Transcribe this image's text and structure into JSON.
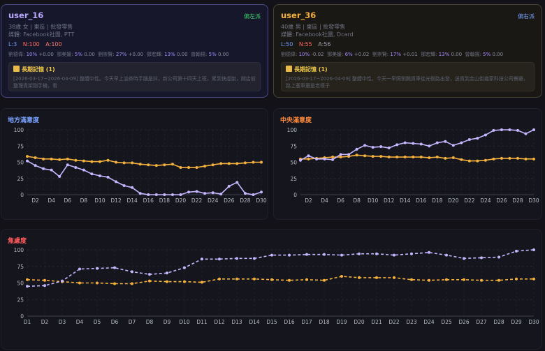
{
  "users": [
    {
      "name": "user_16",
      "lean": "偏左派",
      "profile": "38歲 女 | 東區 | 批發零售",
      "media": "媒體: Facebook社團, PTT",
      "stats": {
        "L": "L:3",
        "N": "N:100",
        "A": "A:100"
      },
      "scores": [
        {
          "label": "劉德偉:",
          "pct": "10%",
          "delta": "+0.00"
        },
        {
          "label": "鄧美媛:",
          "pct": "5%",
          "delta": "0.00"
        },
        {
          "label": "劉崇賢:",
          "pct": "27%",
          "delta": "+0.00"
        },
        {
          "label": "鄧宏輝:",
          "pct": "13%",
          "delta": "0.00"
        },
        {
          "label": "曾翰揚:",
          "pct": "5%",
          "delta": "0.00"
        }
      ],
      "memory_title": "長期記憶 (1)",
      "memory_text": "[2026-03-17~2026-04-09] 整體中性。今天早上油茶時手腦是抖，新公司第十四天上班，累到快虛脫，開店前整理貨架剛手機，看"
    },
    {
      "name": "user_36",
      "lean": "偏右派",
      "profile": "40歲 男 | 東區 | 批發零售",
      "media": "媒體: Facebook社團, Dcard",
      "stats": {
        "L": "L:50",
        "N": "N:55",
        "A": "A:56"
      },
      "scores": [
        {
          "label": "劉德偉:",
          "pct": "10%",
          "delta": "-0.02"
        },
        {
          "label": "鄧美媛:",
          "pct": "6%",
          "delta": "+0.02"
        },
        {
          "label": "劉崇賢:",
          "pct": "17%",
          "delta": "+0.01"
        },
        {
          "label": "鄧宏輝:",
          "pct": "13%",
          "delta": "0.00"
        },
        {
          "label": "曾翰揚:",
          "pct": "5%",
          "delta": "0.00"
        }
      ],
      "memory_title": "長期記憶 (1)",
      "memory_text": "[2026-03-17~2026-04-09] 整體中性。今天一早照例開貨車從光復路出發，送貨到金山街幾家科技公司餐廳，路上塞車還是老樣子"
    }
  ],
  "chart_data": [
    {
      "type": "line",
      "title": "地方滿意度",
      "x": [
        "D1",
        "D2",
        "D3",
        "D4",
        "D5",
        "D6",
        "D7",
        "D8",
        "D9",
        "D10",
        "D11",
        "D12",
        "D13",
        "D14",
        "D15",
        "D16",
        "D17",
        "D18",
        "D19",
        "D20",
        "D21",
        "D22",
        "D23",
        "D24",
        "D25",
        "D26",
        "D27",
        "D28",
        "D29",
        "D30"
      ],
      "xtick_labels": [
        "D2",
        "D4",
        "D6",
        "D8",
        "D10",
        "D12",
        "D14",
        "D16",
        "D18",
        "D20",
        "D22",
        "D24",
        "D26",
        "D28",
        "D30"
      ],
      "ylim": [
        0,
        100
      ],
      "yticks": [
        "0",
        "25",
        "50",
        "75",
        "100"
      ],
      "series": [
        {
          "color": "#f5b13d",
          "dashed": false,
          "values": [
            59,
            57,
            55,
            55,
            54,
            55,
            53,
            52,
            51,
            51,
            53,
            50,
            49,
            49,
            47,
            46,
            45,
            46,
            47,
            42,
            42,
            42,
            44,
            46,
            48,
            48,
            48,
            49,
            50,
            50
          ]
        },
        {
          "color": "#c5b6ff",
          "dashed": false,
          "values": [
            52,
            45,
            40,
            38,
            28,
            46,
            42,
            38,
            32,
            29,
            27,
            20,
            14,
            11,
            2,
            0,
            0,
            0,
            0,
            0,
            4,
            5,
            2,
            3,
            1,
            13,
            19,
            2,
            0,
            4
          ]
        }
      ]
    },
    {
      "type": "line",
      "title": "中央滿意度",
      "x": [
        "D1",
        "D2",
        "D3",
        "D4",
        "D5",
        "D6",
        "D7",
        "D8",
        "D9",
        "D10",
        "D11",
        "D12",
        "D13",
        "D14",
        "D15",
        "D16",
        "D17",
        "D18",
        "D19",
        "D20",
        "D21",
        "D22",
        "D23",
        "D24",
        "D25",
        "D26",
        "D27",
        "D28",
        "D29",
        "D30"
      ],
      "xtick_labels": [
        "D2",
        "D4",
        "D6",
        "D8",
        "D10",
        "D12",
        "D14",
        "D16",
        "D18",
        "D20",
        "D22",
        "D24",
        "D26",
        "D28",
        "D30"
      ],
      "ylim": [
        0,
        100
      ],
      "yticks": [
        "0",
        "25",
        "50",
        "75",
        "100"
      ],
      "series": [
        {
          "color": "#f5b13d",
          "dashed": false,
          "values": [
            55,
            55,
            56,
            57,
            58,
            58,
            59,
            61,
            60,
            59,
            59,
            58,
            58,
            58,
            58,
            58,
            57,
            58,
            56,
            57,
            54,
            52,
            52,
            53,
            55,
            56,
            56,
            56,
            55,
            55
          ]
        },
        {
          "color": "#c5b6ff",
          "dashed": false,
          "values": [
            53,
            60,
            55,
            55,
            54,
            62,
            62,
            70,
            76,
            73,
            74,
            72,
            77,
            80,
            79,
            78,
            75,
            80,
            82,
            76,
            80,
            85,
            87,
            92,
            99,
            100,
            100,
            99,
            94,
            100
          ]
        }
      ]
    },
    {
      "type": "line",
      "title": "焦慮度",
      "x": [
        "D1",
        "D2",
        "D3",
        "D4",
        "D5",
        "D6",
        "D7",
        "D8",
        "D9",
        "D10",
        "D11",
        "D12",
        "D13",
        "D14",
        "D15",
        "D16",
        "D17",
        "D18",
        "D19",
        "D20",
        "D21",
        "D22",
        "D23",
        "D24",
        "D25",
        "D26",
        "D27",
        "D28",
        "D29",
        "D30"
      ],
      "xtick_labels": [
        "D1",
        "D2",
        "D3",
        "D4",
        "D5",
        "D6",
        "D7",
        "D8",
        "D9",
        "D10",
        "D11",
        "D12",
        "D13",
        "D14",
        "D15",
        "D16",
        "D17",
        "D18",
        "D19",
        "D20",
        "D21",
        "D22",
        "D23",
        "D24",
        "D25",
        "D26",
        "D27",
        "D28",
        "D29",
        "D30"
      ],
      "ylim": [
        0,
        100
      ],
      "yticks": [
        "0",
        "25",
        "50",
        "75",
        "100"
      ],
      "series": [
        {
          "color": "#f5b13d",
          "dashed": true,
          "values": [
            55,
            54,
            52,
            50,
            50,
            49,
            49,
            53,
            52,
            52,
            51,
            56,
            56,
            56,
            55,
            54,
            55,
            54,
            60,
            58,
            58,
            58,
            55,
            54,
            55,
            55,
            54,
            54,
            56,
            56
          ]
        },
        {
          "color": "#c5b6ff",
          "dashed": true,
          "values": [
            45,
            46,
            53,
            71,
            72,
            73,
            67,
            63,
            65,
            73,
            86,
            86,
            87,
            87,
            92,
            92,
            93,
            93,
            92,
            94,
            94,
            92,
            94,
            96,
            92,
            87,
            88,
            89,
            98,
            100
          ]
        }
      ]
    }
  ]
}
